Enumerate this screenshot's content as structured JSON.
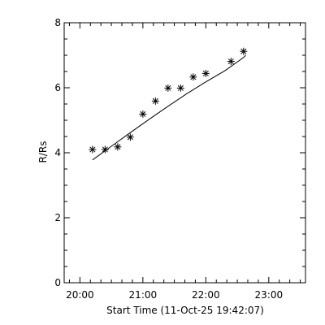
{
  "chart_data": {
    "type": "scatter",
    "xlabel": "Start Time (11-Oct-25 19:42:07)",
    "ylabel": "R/Rs",
    "x_ticks": [
      "20:00",
      "21:00",
      "22:00",
      "23:00"
    ],
    "x_tick_values": [
      "20:00",
      "21:00",
      "22:00",
      "23:00"
    ],
    "xlim": [
      "19:45",
      "23:35"
    ],
    "y_ticks": [
      "0",
      "2",
      "4",
      "6",
      "8"
    ],
    "ylim": [
      0,
      8
    ],
    "grid": false,
    "marker": "asterisk",
    "points": [
      {
        "x": "20:12",
        "y": 4.1
      },
      {
        "x": "20:24",
        "y": 4.1
      },
      {
        "x": "20:36",
        "y": 4.18
      },
      {
        "x": "20:48",
        "y": 4.48
      },
      {
        "x": "21:00",
        "y": 5.19
      },
      {
        "x": "21:12",
        "y": 5.59
      },
      {
        "x": "21:24",
        "y": 5.99
      },
      {
        "x": "21:36",
        "y": 5.99
      },
      {
        "x": "21:48",
        "y": 6.33
      },
      {
        "x": "22:00",
        "y": 6.44
      },
      {
        "x": "22:24",
        "y": 6.81
      },
      {
        "x": "22:36",
        "y": 7.12
      }
    ],
    "fit": {
      "type": "line",
      "points": [
        {
          "x": "20:12",
          "y": 3.78
        },
        {
          "x": "20:30",
          "y": 4.2
        },
        {
          "x": "20:48",
          "y": 4.62
        },
        {
          "x": "21:06",
          "y": 5.03
        },
        {
          "x": "21:24",
          "y": 5.43
        },
        {
          "x": "21:42",
          "y": 5.82
        },
        {
          "x": "22:00",
          "y": 6.18
        },
        {
          "x": "22:18",
          "y": 6.52
        },
        {
          "x": "22:36",
          "y": 6.93
        },
        {
          "x": "22:38",
          "y": 7.0
        }
      ]
    },
    "colors": {
      "background": "#ffffff",
      "foreground": "#000000"
    }
  }
}
